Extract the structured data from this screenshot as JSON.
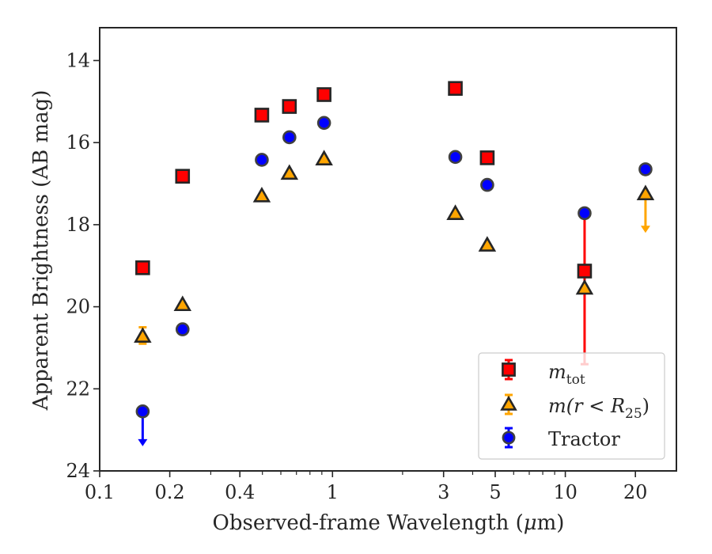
{
  "chart_data": {
    "type": "scatter",
    "xlabel_main": "Observed-frame Wavelength (",
    "xlabel_mu": "μ",
    "xlabel_unit": "m)",
    "ylabel": "Apparent Brightness (AB mag)",
    "xscale": "log",
    "xlim": [
      0.1,
      30
    ],
    "ylim": [
      24,
      13.2
    ],
    "y_inverted": true,
    "xticks": [
      {
        "value": 0.1,
        "label": "0.1"
      },
      {
        "value": 0.2,
        "label": "0.2"
      },
      {
        "value": 0.4,
        "label": "0.4"
      },
      {
        "value": 1,
        "label": "1"
      },
      {
        "value": 3,
        "label": "3"
      },
      {
        "value": 5,
        "label": "5"
      },
      {
        "value": 10,
        "label": "10"
      },
      {
        "value": 20,
        "label": "20"
      }
    ],
    "yticks": [
      {
        "value": 14,
        "label": "14"
      },
      {
        "value": 16,
        "label": "16"
      },
      {
        "value": 18,
        "label": "18"
      },
      {
        "value": 20,
        "label": "20"
      },
      {
        "value": 22,
        "label": "22"
      },
      {
        "value": 24,
        "label": "24"
      }
    ],
    "grid": false,
    "legend_position": "lower-right",
    "series": [
      {
        "key": "mtot",
        "legend_main": "m",
        "legend_sub": "tot",
        "marker": "square",
        "fill_color": "#ff0000",
        "error_color": "#ff0000",
        "points": [
          {
            "x": 0.153,
            "y": 19.05
          },
          {
            "x": 0.227,
            "y": 16.82
          },
          {
            "x": 0.497,
            "y": 15.33
          },
          {
            "x": 0.653,
            "y": 15.12
          },
          {
            "x": 0.92,
            "y": 14.83
          },
          {
            "x": 3.37,
            "y": 14.68
          },
          {
            "x": 4.62,
            "y": 16.37
          },
          {
            "x": 12.1,
            "y": 19.13,
            "yerr_low": 21.4,
            "yerr_high": 17.7
          }
        ]
      },
      {
        "key": "mr25",
        "legend_main": "m(r < R",
        "legend_sub": "25",
        "legend_tail": ")",
        "marker": "triangle",
        "fill_color": "#ffa500",
        "error_color": "#ffa500",
        "points": [
          {
            "x": 0.153,
            "y": 20.72,
            "yerr_low": 20.9,
            "yerr_high": 20.5
          },
          {
            "x": 0.227,
            "y": 19.95
          },
          {
            "x": 0.497,
            "y": 17.3
          },
          {
            "x": 0.653,
            "y": 16.75
          },
          {
            "x": 0.92,
            "y": 16.4
          },
          {
            "x": 3.37,
            "y": 17.73
          },
          {
            "x": 4.62,
            "y": 18.5
          },
          {
            "x": 12.1,
            "y": 19.55
          },
          {
            "x": 22.1,
            "y": 17.25,
            "upper_limit_to": 18.2
          }
        ]
      },
      {
        "key": "tractor",
        "legend_main": "Tractor",
        "marker": "circle",
        "fill_color": "#0000ff",
        "error_color": "#0000ff",
        "points": [
          {
            "x": 0.153,
            "y": 22.55,
            "upper_limit_to": 23.4
          },
          {
            "x": 0.227,
            "y": 20.55
          },
          {
            "x": 0.497,
            "y": 16.42
          },
          {
            "x": 0.653,
            "y": 15.87
          },
          {
            "x": 0.92,
            "y": 15.52
          },
          {
            "x": 3.37,
            "y": 16.35
          },
          {
            "x": 4.62,
            "y": 17.03
          },
          {
            "x": 12.1,
            "y": 17.72
          },
          {
            "x": 22.1,
            "y": 16.65
          }
        ]
      }
    ]
  }
}
